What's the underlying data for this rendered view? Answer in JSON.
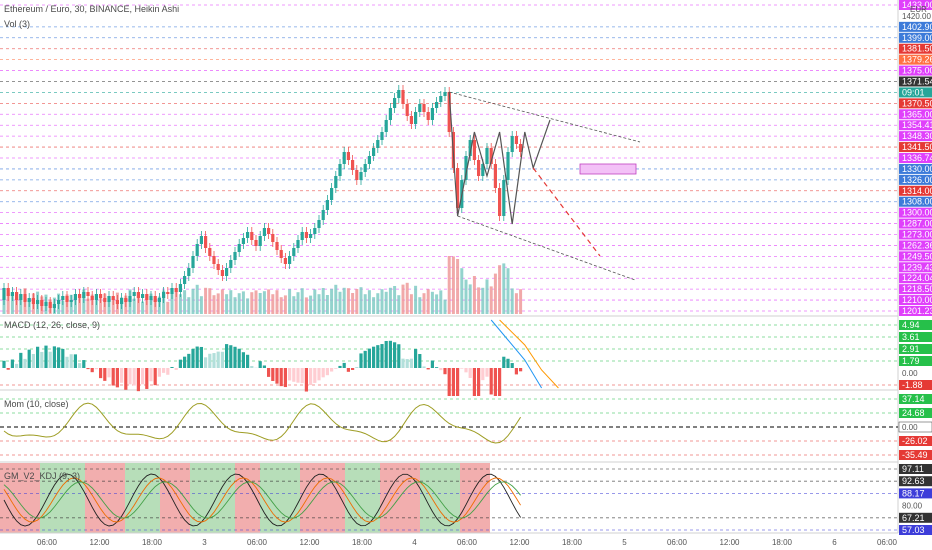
{
  "header": {
    "title": "Ethereum / Euro, 30, BINANCE, Heikin Ashi",
    "volume_indicator": "Vol (3)",
    "currency": "EUR"
  },
  "colors": {
    "up": "#26a69a",
    "down": "#ef5350",
    "hline_blue": "#3d7bd9",
    "hline_magenta": "#e040fb",
    "hline_red": "#e53935",
    "pattern_line": "#555555"
  },
  "chart_data": [
    {
      "type": "candlestick",
      "name": "price",
      "ylim": [
        1295,
        1440
      ],
      "time_ticks": [
        "06:00",
        "12:00",
        "18:00",
        "3",
        "06:00",
        "12:00",
        "18:00",
        "4",
        "06:00",
        "12:00",
        "18:00",
        "5",
        "06:00",
        "12:00",
        "18:00",
        "6",
        "06:00"
      ],
      "candles": [
        [
          1300,
          1306
        ],
        [
          1306,
          1302
        ],
        [
          1302,
          1304
        ],
        [
          1304,
          1300
        ],
        [
          1300,
          1303
        ],
        [
          1303,
          1299
        ],
        [
          1299,
          1301
        ],
        [
          1301,
          1298
        ],
        [
          1298,
          1300
        ],
        [
          1300,
          1297
        ],
        [
          1297,
          1299
        ],
        [
          1299,
          1296
        ],
        [
          1296,
          1298
        ],
        [
          1298,
          1300
        ],
        [
          1300,
          1302
        ],
        [
          1302,
          1299
        ],
        [
          1299,
          1300
        ],
        [
          1300,
          1303
        ],
        [
          1303,
          1301
        ],
        [
          1301,
          1304
        ],
        [
          1304,
          1302
        ],
        [
          1302,
          1300
        ],
        [
          1300,
          1303
        ],
        [
          1303,
          1301
        ],
        [
          1301,
          1299
        ],
        [
          1299,
          1302
        ],
        [
          1302,
          1300
        ],
        [
          1300,
          1298
        ],
        [
          1298,
          1301
        ],
        [
          1301,
          1299
        ],
        [
          1299,
          1302
        ],
        [
          1302,
          1304
        ],
        [
          1304,
          1301
        ],
        [
          1301,
          1303
        ],
        [
          1303,
          1300
        ],
        [
          1300,
          1302
        ],
        [
          1302,
          1299
        ],
        [
          1299,
          1301
        ],
        [
          1301,
          1304
        ],
        [
          1304,
          1303
        ],
        [
          1303,
          1306
        ],
        [
          1306,
          1304
        ],
        [
          1304,
          1308
        ],
        [
          1308,
          1312
        ],
        [
          1312,
          1316
        ],
        [
          1316,
          1322
        ],
        [
          1322,
          1328
        ],
        [
          1328,
          1332
        ],
        [
          1332,
          1326
        ],
        [
          1326,
          1322
        ],
        [
          1322,
          1318
        ],
        [
          1318,
          1315
        ],
        [
          1315,
          1312
        ],
        [
          1312,
          1316
        ],
        [
          1316,
          1320
        ],
        [
          1320,
          1324
        ],
        [
          1324,
          1328
        ],
        [
          1328,
          1331
        ],
        [
          1331,
          1334
        ],
        [
          1334,
          1330
        ],
        [
          1330,
          1327
        ],
        [
          1327,
          1332
        ],
        [
          1332,
          1336
        ],
        [
          1336,
          1333
        ],
        [
          1333,
          1329
        ],
        [
          1329,
          1325
        ],
        [
          1325,
          1321
        ],
        [
          1321,
          1318
        ],
        [
          1318,
          1322
        ],
        [
          1322,
          1326
        ],
        [
          1326,
          1330
        ],
        [
          1330,
          1334
        ],
        [
          1334,
          1331
        ],
        [
          1331,
          1333
        ],
        [
          1333,
          1336
        ],
        [
          1336,
          1340
        ],
        [
          1340,
          1345
        ],
        [
          1345,
          1350
        ],
        [
          1350,
          1356
        ],
        [
          1356,
          1362
        ],
        [
          1362,
          1368
        ],
        [
          1368,
          1374
        ],
        [
          1374,
          1370
        ],
        [
          1370,
          1365
        ],
        [
          1365,
          1360
        ],
        [
          1360,
          1364
        ],
        [
          1364,
          1368
        ],
        [
          1368,
          1372
        ],
        [
          1372,
          1376
        ],
        [
          1376,
          1380
        ],
        [
          1380,
          1384
        ],
        [
          1384,
          1390
        ],
        [
          1390,
          1396
        ],
        [
          1396,
          1401
        ],
        [
          1401,
          1405
        ],
        [
          1405,
          1398
        ],
        [
          1398,
          1392
        ],
        [
          1392,
          1388
        ],
        [
          1388,
          1394
        ],
        [
          1394,
          1398
        ],
        [
          1398,
          1394
        ],
        [
          1394,
          1390
        ],
        [
          1390,
          1396
        ],
        [
          1396,
          1399
        ],
        [
          1399,
          1402
        ],
        [
          1402,
          1404
        ],
        [
          1404,
          1384
        ],
        [
          1384,
          1366
        ],
        [
          1366,
          1346
        ],
        [
          1346,
          1360
        ],
        [
          1360,
          1372
        ],
        [
          1372,
          1380
        ],
        [
          1380,
          1370
        ],
        [
          1370,
          1362
        ],
        [
          1362,
          1368
        ],
        [
          1368,
          1376
        ],
        [
          1376,
          1368
        ],
        [
          1368,
          1356
        ],
        [
          1356,
          1342
        ],
        [
          1342,
          1360
        ],
        [
          1360,
          1374
        ],
        [
          1374,
          1382
        ],
        [
          1382,
          1378
        ],
        [
          1378,
          1374
        ]
      ],
      "price_levels": [
        {
          "value": "1433.00",
          "color": "#e040fb"
        },
        {
          "value": "1420.00",
          "color": "none"
        },
        {
          "value": "1402.90",
          "color": "#3d7bd9"
        },
        {
          "value": "1399.00",
          "color": "#3d7bd9"
        },
        {
          "value": "1381.50",
          "color": "#e53935"
        },
        {
          "value": "1379.26",
          "color": "#ff7043"
        },
        {
          "value": "1375.00",
          "color": "#e040fb"
        },
        {
          "value": "1371.54",
          "color": "#333333"
        },
        {
          "value": "09:01",
          "color": "#26a69a"
        },
        {
          "value": "1370.50",
          "color": "#e53935"
        },
        {
          "value": "1365.00",
          "color": "#e040fb"
        },
        {
          "value": "1354.41",
          "color": "#e040fb"
        },
        {
          "value": "1348.30",
          "color": "#e040fb"
        },
        {
          "value": "1341.50",
          "color": "#e53935"
        },
        {
          "value": "1336.74",
          "color": "#e040fb"
        },
        {
          "value": "1330.00",
          "color": "#3d7bd9"
        },
        {
          "value": "1326.00",
          "color": "#3d7bd9"
        },
        {
          "value": "1314.00",
          "color": "#e53935"
        },
        {
          "value": "1308.00",
          "color": "#3d7bd9"
        },
        {
          "value": "1300.00",
          "color": "#e040fb"
        },
        {
          "value": "1287.00",
          "color": "#e040fb"
        },
        {
          "value": "1273.00",
          "color": "#e040fb"
        },
        {
          "value": "1262.36",
          "color": "#e040fb"
        },
        {
          "value": "1249.50",
          "color": "#e040fb"
        },
        {
          "value": "1239.43",
          "color": "#e040fb"
        },
        {
          "value": "1224.04",
          "color": "#e040fb"
        },
        {
          "value": "1218.50",
          "color": "#e040fb"
        },
        {
          "value": "1210.00",
          "color": "#e040fb"
        },
        {
          "value": "1201.23",
          "color": "#e040fb"
        }
      ]
    },
    {
      "type": "macd",
      "title": "MACD (12, 26, close, 9)",
      "levels": [
        {
          "value": "4.94",
          "color": "#26c04a"
        },
        {
          "value": "3.61",
          "color": "#26c04a"
        },
        {
          "value": "2.91",
          "color": "#26c04a"
        },
        {
          "value": "1.79",
          "color": "#26c04a"
        },
        {
          "value": "0.00",
          "color": "none"
        },
        {
          "value": "-1.88",
          "color": "#e53935"
        }
      ]
    },
    {
      "type": "line",
      "title": "Mom (10, close)",
      "levels": [
        {
          "value": "37.14",
          "color": "#26c04a"
        },
        {
          "value": "24.68",
          "color": "#26c04a"
        },
        {
          "value": "0.00",
          "color": "#ffffff"
        },
        {
          "value": "-26.02",
          "color": "#e53935"
        },
        {
          "value": "-35.49",
          "color": "#e53935"
        }
      ]
    },
    {
      "type": "line",
      "title": "GM_V2_KDJ (9, 3)",
      "levels": [
        {
          "value": "97.11",
          "color": "#333333"
        },
        {
          "value": "92.63",
          "color": "#333333"
        },
        {
          "value": "88.17",
          "color": "#3d3dd9"
        },
        {
          "value": "80.00",
          "color": "none"
        },
        {
          "value": "67.21",
          "color": "#333333"
        },
        {
          "value": "57.03",
          "color": "#3d3dd9"
        }
      ]
    }
  ]
}
